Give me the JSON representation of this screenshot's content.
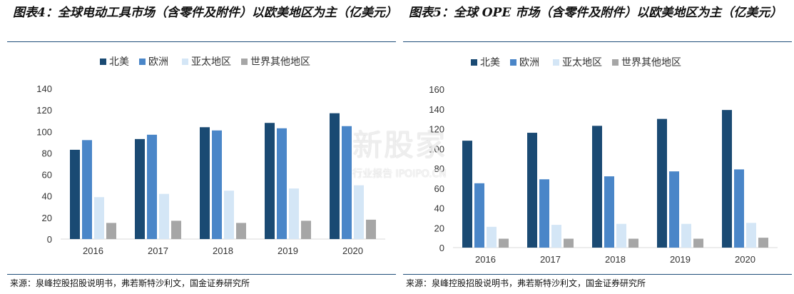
{
  "charts": [
    {
      "title": "图表4：全球电动工具市场（含零件及附件）以欧美地区为主（亿美元）",
      "source": "来源：泉峰控股招股说明书，弗若斯特沙利文，国金证券研究所"
    },
    {
      "title": "图表5：全球 OPE 市场（含零件及附件）以欧美地区为主（亿美元）",
      "source": "来源：泉峰控股招股说明书，弗若斯特沙利文，国金证券研究所"
    }
  ],
  "watermark": {
    "main": "新股家",
    "sub": "行业报告 IPOIPO.CN"
  },
  "chart_data": [
    {
      "type": "bar",
      "title": "图表4：全球电动工具市场（含零件及附件）以欧美地区为主（亿美元）",
      "categories": [
        "2016",
        "2017",
        "2018",
        "2019",
        "2020"
      ],
      "series": [
        {
          "name": "北美",
          "color": "#1a4a73",
          "values": [
            83,
            93,
            104,
            108,
            117
          ]
        },
        {
          "name": "欧洲",
          "color": "#4a86c8",
          "values": [
            92,
            97,
            101,
            103,
            105
          ]
        },
        {
          "name": "亚太地区",
          "color": "#d4e6f6",
          "values": [
            39,
            42,
            45,
            47,
            50
          ]
        },
        {
          "name": "世界其他地区",
          "color": "#a6a6a6",
          "values": [
            15,
            17,
            15,
            17,
            18
          ]
        }
      ],
      "ylim": [
        0,
        140
      ],
      "yticks": [
        0,
        20,
        40,
        60,
        80,
        100,
        120,
        140
      ],
      "legend": "top",
      "grid": false
    },
    {
      "type": "bar",
      "title": "图表5：全球 OPE 市场（含零件及附件）以欧美地区为主（亿美元）",
      "categories": [
        "2016",
        "2017",
        "2018",
        "2019",
        "2020"
      ],
      "series": [
        {
          "name": "北美",
          "color": "#1a4a73",
          "values": [
            108,
            116,
            123,
            130,
            139
          ]
        },
        {
          "name": "欧洲",
          "color": "#4a86c8",
          "values": [
            65,
            69,
            72,
            77,
            79
          ]
        },
        {
          "name": "亚太地区",
          "color": "#d4e6f6",
          "values": [
            21,
            23,
            24,
            24,
            25
          ]
        },
        {
          "name": "世界其他地区",
          "color": "#a6a6a6",
          "values": [
            9,
            9,
            9,
            9,
            10
          ]
        }
      ],
      "ylim": [
        0,
        160
      ],
      "yticks": [
        0,
        20,
        40,
        60,
        80,
        100,
        120,
        140,
        160
      ],
      "legend": "top",
      "grid": false
    }
  ]
}
